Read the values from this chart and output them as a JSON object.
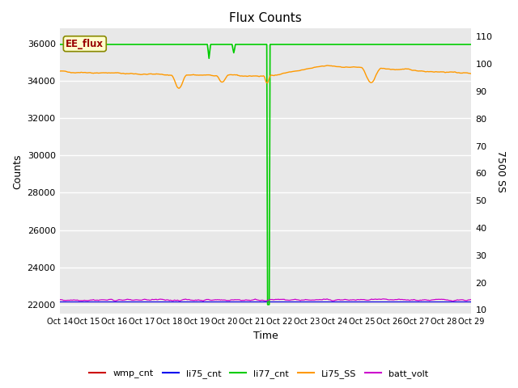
{
  "title": "Flux Counts",
  "xlabel": "Time",
  "ylabel_left": "Counts",
  "ylabel_right": "7500 SS",
  "annotation_text": "EE_flux",
  "x_tick_labels": [
    "Oct 14",
    "Oct 15",
    "Oct 16",
    "Oct 17",
    "Oct 18",
    "Oct 19",
    "Oct 20",
    "Oct 21",
    "Oct 22",
    "Oct 23",
    "Oct 24",
    "Oct 25",
    "Oct 26",
    "Oct 27",
    "Oct 28",
    "Oct 29"
  ],
  "ylim_left": [
    21500,
    36800
  ],
  "ylim_right": [
    8.5,
    113
  ],
  "yticks_left": [
    22000,
    24000,
    26000,
    28000,
    30000,
    32000,
    34000,
    36000
  ],
  "yticks_right": [
    10,
    20,
    30,
    40,
    50,
    60,
    70,
    80,
    90,
    100,
    110
  ],
  "bg_color": "#e8e8e8",
  "legend_colors_wmp": "#cc0000",
  "legend_colors_li75": "#0000ee",
  "legend_colors_li77": "#00cc00",
  "legend_colors_Li75SS": "#ff9900",
  "legend_colors_batt": "#cc00cc",
  "title_fontsize": 11,
  "label_fontsize": 9,
  "tick_fontsize": 8
}
